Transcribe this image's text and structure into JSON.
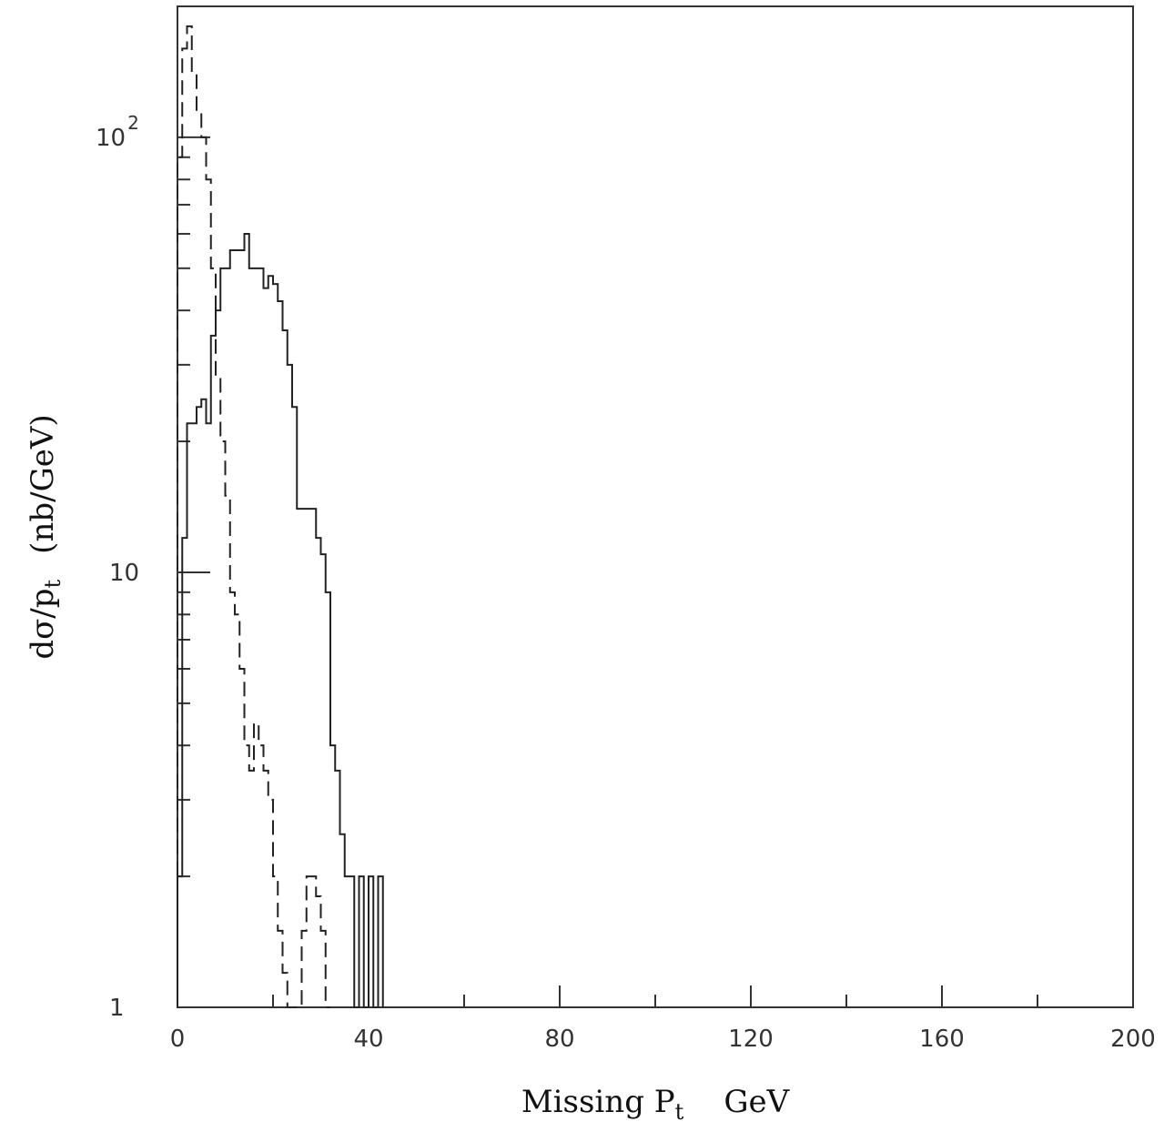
{
  "chart_data": {
    "type": "histogram",
    "xlabel_main": "Missing P",
    "xlabel_sub": "t",
    "xlabel_unit": "GeV",
    "ylabel_main": "dσ/p",
    "ylabel_sub": "t",
    "ylabel_unit": "(nb/GeV)",
    "x_range": [
      0,
      200
    ],
    "y_range": [
      1,
      200
    ],
    "y_scale": "log",
    "x_ticks": [
      {
        "value": 0,
        "label": "0"
      },
      {
        "value": 40,
        "label": "40"
      },
      {
        "value": 80,
        "label": "80"
      },
      {
        "value": 120,
        "label": "120"
      },
      {
        "value": 160,
        "label": "160"
      },
      {
        "value": 200,
        "label": "200"
      }
    ],
    "y_ticks": [
      {
        "value": 1,
        "label": "1"
      },
      {
        "value": 10,
        "label": "10"
      },
      {
        "value": 100,
        "label": "10",
        "sup": "2"
      }
    ],
    "grid": false,
    "legend": "none",
    "series": [
      {
        "style": "solid",
        "bin_width": 1,
        "x_start": 0,
        "values": [
          2,
          12,
          22,
          22,
          24,
          25,
          22,
          35,
          40,
          50,
          50,
          55,
          55,
          55,
          60,
          50,
          50,
          50,
          45,
          48,
          46,
          42,
          36,
          30,
          24,
          14,
          14,
          14,
          14,
          12,
          11,
          9,
          4,
          3.5,
          2.5,
          2,
          2,
          1,
          2,
          1,
          2,
          1,
          2
        ]
      },
      {
        "style": "dashed",
        "bin_width": 1,
        "x_start": 0,
        "values": [
          90,
          160,
          180,
          140,
          115,
          100,
          80,
          50,
          28,
          20,
          15,
          9,
          8,
          6,
          4,
          3.5,
          4.5,
          4,
          3.5,
          3,
          2,
          1.5,
          1.2,
          1,
          1,
          1,
          1.5,
          2,
          2,
          1.8,
          1.5,
          1
        ]
      }
    ]
  }
}
